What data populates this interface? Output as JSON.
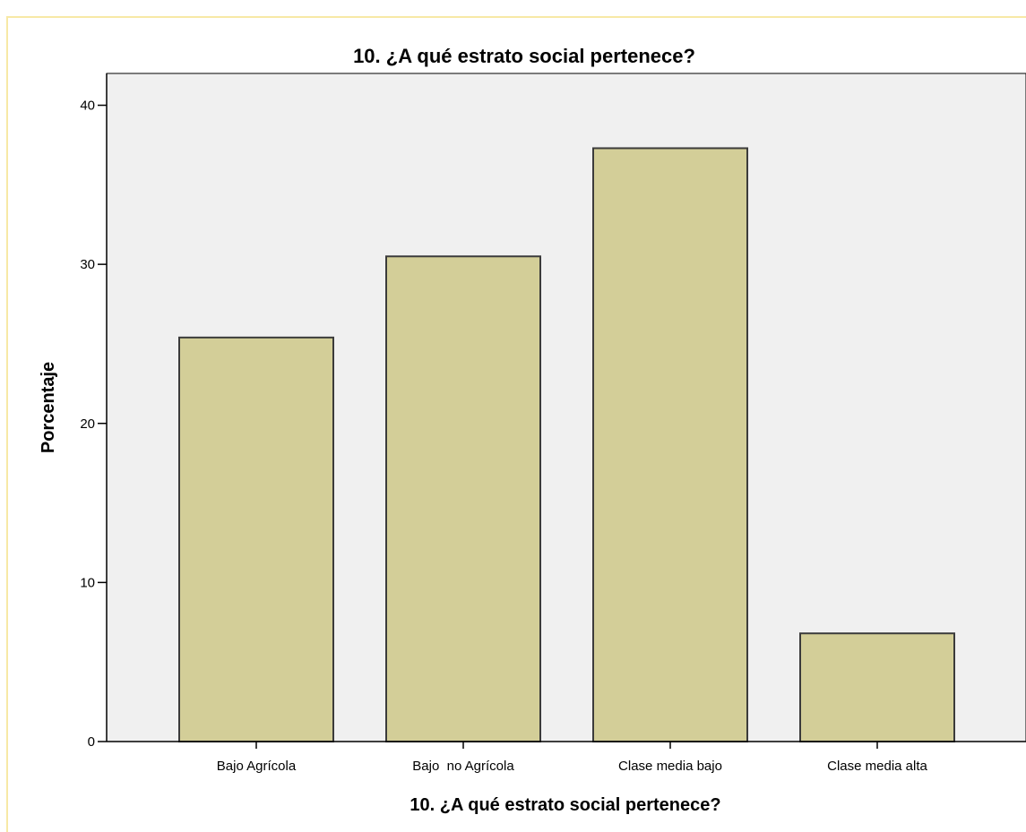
{
  "chart_data": {
    "type": "bar",
    "title": "10. ¿A qué estrato social pertenece?",
    "xlabel": "10. ¿A qué estrato social pertenece?",
    "ylabel": "Porcentaje",
    "categories": [
      "Bajo Agrícola",
      "Bajo  no Agrícola",
      "Clase media bajo",
      "Clase media alta"
    ],
    "values": [
      25.4,
      30.5,
      37.3,
      6.8
    ],
    "ylim": [
      0,
      42
    ],
    "yticks": [
      "0",
      "10",
      "20",
      "30",
      "40"
    ],
    "grid": false,
    "colors": {
      "bar_fill": "#d3ce98",
      "bar_stroke": "#3b3b3b",
      "plot_background": "#f0f0f0",
      "axis": "#000000",
      "frame_border": "#f7e9a6"
    }
  }
}
